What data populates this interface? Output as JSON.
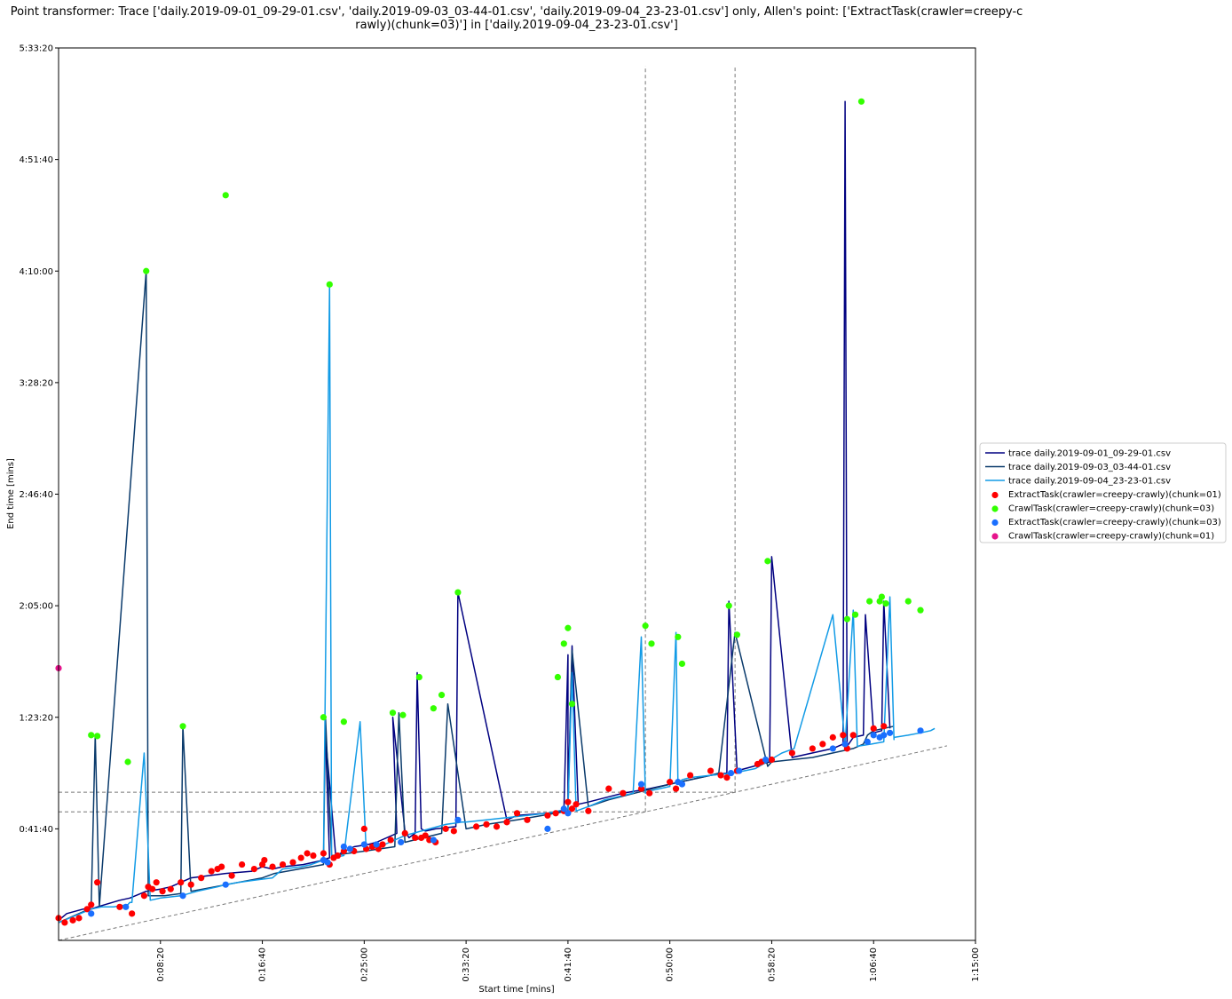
{
  "chart_data": {
    "type": "line",
    "title_lines": [
      "Point transformer: Trace ['daily.2019-09-01_09-29-01.csv', 'daily.2019-09-03_03-44-01.csv', 'daily.2019-09-04_23-23-01.csv'] only, Allen's point: ['ExtractTask(crawler=creepy-c",
      "rawly)(chunk=03)'] in ['daily.2019-09-04_23-23-01.csv']"
    ],
    "xlabel": "Start time [mins]",
    "ylabel": "End time [mins]",
    "xlim": [
      0,
      4500
    ],
    "ylim": [
      0,
      20000
    ],
    "x_ticks": [
      {
        "v": 500,
        "label": "0:08:20"
      },
      {
        "v": 1000,
        "label": "0:16:40"
      },
      {
        "v": 1500,
        "label": "0:25:00"
      },
      {
        "v": 2000,
        "label": "0:33:20"
      },
      {
        "v": 2500,
        "label": "0:41:40"
      },
      {
        "v": 3000,
        "label": "0:50:00"
      },
      {
        "v": 3500,
        "label": "0:58:20"
      },
      {
        "v": 4000,
        "label": "1:06:40"
      },
      {
        "v": 4500,
        "label": "1:15:00"
      }
    ],
    "y_ticks": [
      {
        "v": 2500,
        "label": "0:41:40"
      },
      {
        "v": 5000,
        "label": "1:23:20"
      },
      {
        "v": 7500,
        "label": "2:05:00"
      },
      {
        "v": 10000,
        "label": "2:46:40"
      },
      {
        "v": 12500,
        "label": "3:28:20"
      },
      {
        "v": 15000,
        "label": "4:10:00"
      },
      {
        "v": 17500,
        "label": "4:51:40"
      },
      {
        "v": 20000,
        "label": "5:33:20"
      }
    ],
    "reference_line": {
      "x": [
        0,
        4360
      ],
      "y": [
        0,
        4360
      ]
    },
    "allen_lines": {
      "vertical_x": [
        2880,
        3320
      ],
      "vertical_y_top": 19600,
      "horizontal_y": [
        2880,
        3320
      ]
    },
    "series": [
      {
        "name": "trace daily.2019-09-01_09-29-01.csv",
        "color": "#000080",
        "x": [
          0,
          40,
          120,
          160,
          190,
          300,
          350,
          430,
          500,
          550,
          600,
          650,
          820,
          950,
          1000,
          1050,
          1100,
          1200,
          1280,
          1330,
          1310,
          1360,
          1450,
          1520,
          1560,
          1660,
          1640,
          1700,
          1720,
          1750,
          1760,
          1780,
          1800,
          1850,
          1950,
          1960,
          2200,
          2250,
          2400,
          2480,
          2500,
          2500,
          2520,
          2550,
          2600,
          2770,
          2900,
          3000,
          3100,
          3200,
          3280,
          3290,
          3330,
          3450,
          3490,
          3500,
          3600,
          3800,
          3850,
          3860,
          3870,
          3900,
          3950,
          3960,
          4000,
          4040,
          4050,
          4080
        ],
        "y": [
          450,
          600,
          700,
          700,
          750,
          900,
          950,
          1100,
          1150,
          1200,
          1300,
          1400,
          1500,
          1550,
          1650,
          1600,
          1650,
          1700,
          1780,
          1850,
          4600,
          1900,
          2100,
          2150,
          2200,
          2400,
          5000,
          2450,
          2300,
          2400,
          6000,
          2500,
          2450,
          2500,
          2550,
          7800,
          2700,
          2800,
          2850,
          2900,
          6400,
          3000,
          6600,
          3050,
          3100,
          3300,
          3400,
          3500,
          3600,
          3700,
          3750,
          7600,
          3800,
          3950,
          4000,
          8600,
          4100,
          4300,
          4400,
          18800,
          4350,
          4550,
          4600,
          7300,
          4650,
          4700,
          7600,
          4750
        ]
      },
      {
        "name": "trace daily.2019-09-03_03-44-01.csv",
        "color": "#0a3a6b",
        "x": [
          0,
          100,
          150,
          160,
          180,
          200,
          430,
          440,
          520,
          600,
          610,
          650,
          1000,
          1060,
          1300,
          1310,
          1340,
          1500,
          1650,
          1670,
          1700,
          1880,
          1910,
          2000,
          2100,
          2250,
          2500,
          2520,
          2600,
          2700,
          3000,
          3200,
          3240,
          3320,
          3480,
          3500,
          3700,
          3900,
          3950,
          3970,
          4000,
          4100
        ],
        "y": [
          400,
          600,
          700,
          750,
          4600,
          750,
          15000,
          1000,
          1000,
          1050,
          4800,
          1100,
          1400,
          1500,
          1700,
          5000,
          1900,
          2000,
          2100,
          5100,
          2200,
          2400,
          5300,
          2500,
          2600,
          2700,
          2900,
          6500,
          3000,
          3150,
          3500,
          3700,
          3750,
          6900,
          3900,
          4000,
          4100,
          4300,
          4400,
          4600,
          4700,
          4800
        ]
      },
      {
        "name": "trace daily.2019-09-04_23-23-01.csv",
        "color": "#129be6",
        "x": [
          0,
          160,
          210,
          270,
          340,
          350,
          360,
          420,
          450,
          500,
          600,
          680,
          780,
          820,
          880,
          960,
          1050,
          1100,
          1190,
          1240,
          1300,
          1330,
          1340,
          1400,
          1480,
          1510,
          1520,
          1550,
          1600,
          1650,
          1700,
          1900,
          1980,
          2000,
          2100,
          2300,
          2400,
          2450,
          2500,
          2520,
          2540,
          2600,
          2680,
          2820,
          2860,
          2880,
          2900,
          3000,
          3030,
          3040,
          3060,
          3100,
          3200,
          3310,
          3420,
          3550,
          3610,
          3800,
          3860,
          3900,
          3920,
          3990,
          4050,
          4080,
          4100,
          4100,
          4170,
          4230,
          4280,
          4300
        ],
        "y": [
          400,
          700,
          750,
          750,
          800,
          850,
          850,
          4200,
          900,
          950,
          1000,
          1100,
          1200,
          1250,
          1300,
          1350,
          1400,
          1600,
          1650,
          1700,
          1800,
          14700,
          1850,
          1900,
          4900,
          2000,
          2050,
          2100,
          2150,
          2250,
          2350,
          2600,
          2650,
          2650,
          2700,
          2800,
          2850,
          2900,
          2950,
          6000,
          2900,
          3000,
          3150,
          3300,
          6800,
          3300,
          3350,
          3450,
          6900,
          3500,
          3600,
          3650,
          3700,
          3750,
          3850,
          4200,
          4300,
          7300,
          4400,
          7400,
          4350,
          4400,
          4450,
          7700,
          4500,
          4550,
          4600,
          4650,
          4700,
          4750
        ]
      }
    ],
    "scatter_series": [
      {
        "name": "ExtractTask(crawler=creepy-crawly)(chunk=01)",
        "color": "#ff0000",
        "x": [
          0,
          30,
          70,
          100,
          140,
          160,
          190,
          300,
          360,
          420,
          440,
          460,
          480,
          510,
          550,
          600,
          650,
          700,
          750,
          780,
          800,
          850,
          900,
          960,
          1000,
          1010,
          1050,
          1100,
          1150,
          1190,
          1220,
          1250,
          1300,
          1330,
          1350,
          1370,
          1400,
          1450,
          1500,
          1510,
          1540,
          1570,
          1590,
          1630,
          1700,
          1750,
          1780,
          1800,
          1820,
          1850,
          1900,
          1940,
          2050,
          2100,
          2150,
          2200,
          2250,
          2300,
          2400,
          2440,
          2480,
          2500,
          2520,
          2540,
          2600,
          2700,
          2770,
          2860,
          2900,
          3000,
          3030,
          3100,
          3200,
          3250,
          3280,
          3330,
          3430,
          3450,
          3500,
          3600,
          3700,
          3750,
          3800,
          3850,
          3860,
          3870,
          3900,
          4000,
          4050
        ],
        "y": [
          500,
          400,
          450,
          500,
          700,
          800,
          1300,
          750,
          600,
          1000,
          1200,
          1150,
          1300,
          1100,
          1150,
          1300,
          1250,
          1400,
          1550,
          1600,
          1650,
          1450,
          1700,
          1600,
          1700,
          1800,
          1650,
          1700,
          1750,
          1850,
          1950,
          1900,
          1950,
          1700,
          1850,
          1900,
          2000,
          2000,
          2500,
          2050,
          2100,
          2050,
          2150,
          2250,
          2400,
          2300,
          2300,
          2350,
          2250,
          2200,
          2500,
          2450,
          2550,
          2600,
          2550,
          2650,
          2850,
          2700,
          2800,
          2850,
          2900,
          3100,
          2950,
          3050,
          2900,
          3400,
          3300,
          3400,
          3300,
          3550,
          3400,
          3700,
          3800,
          3700,
          3650,
          3800,
          3950,
          4000,
          4050,
          4200,
          4300,
          4400,
          4550,
          4600,
          4400,
          4300,
          4600,
          4750,
          4800
        ]
      },
      {
        "name": "CrawlTask(crawler=creepy-crawly)(chunk=03)",
        "color": "#33ff00",
        "x": [
          160,
          190,
          340,
          430,
          610,
          820,
          1300,
          1330,
          1400,
          1640,
          1690,
          1770,
          1840,
          1880,
          1960,
          2450,
          2480,
          2500,
          2520,
          2880,
          2910,
          3040,
          3060,
          3290,
          3330,
          3480,
          3870,
          3910,
          3940,
          3980,
          4030,
          4040,
          4060,
          4170,
          4230
        ],
        "y": [
          4600,
          4580,
          4000,
          15000,
          4800,
          16700,
          5000,
          14700,
          4900,
          5100,
          5050,
          5900,
          5200,
          5500,
          7800,
          5900,
          6650,
          7000,
          5300,
          7050,
          6650,
          6800,
          6200,
          7500,
          6850,
          8500,
          7200,
          7300,
          18800,
          7600,
          7600,
          7700,
          7550,
          7600,
          7400
        ]
      },
      {
        "name": "ExtractTask(crawler=creepy-crawly)(chunk=03)",
        "color": "#1a6fff",
        "x": [
          160,
          330,
          610,
          820,
          1300,
          1320,
          1400,
          1430,
          1500,
          1560,
          1680,
          1840,
          1960,
          2400,
          2480,
          2500,
          2860,
          3040,
          3060,
          3300,
          3340,
          3470,
          3800,
          3860,
          3970,
          4000,
          4030,
          4050,
          4080,
          4230
        ],
        "y": [
          600,
          750,
          1000,
          1250,
          1800,
          1750,
          2100,
          2050,
          2150,
          2150,
          2200,
          2250,
          2700,
          2500,
          2950,
          2850,
          3500,
          3550,
          3500,
          3750,
          3800,
          4050,
          4300,
          4400,
          4450,
          4600,
          4550,
          4600,
          4650,
          4700
        ]
      },
      {
        "name": "CrawlTask(crawler=creepy-crawly)(chunk=01)",
        "color": "#e6148c",
        "x": [
          0
        ],
        "y": [
          6100
        ]
      }
    ],
    "legend_position": "center-right"
  }
}
